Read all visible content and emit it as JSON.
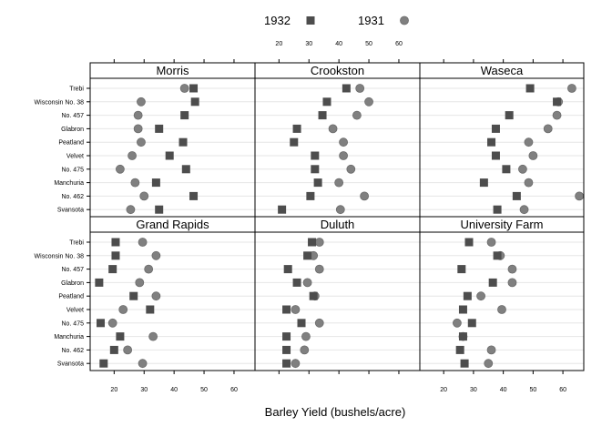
{
  "chart_data": {
    "type": "scatter",
    "xlabel": "Barley Yield (bushels/acre)",
    "xlim": [
      12,
      67
    ],
    "xticks": [
      20,
      30,
      40,
      50,
      60
    ],
    "varieties": [
      "Trebi",
      "Wisconsin No. 38",
      "No. 457",
      "Glabron",
      "Peatland",
      "Velvet",
      "No. 475",
      "Manchuria",
      "No. 462",
      "Svansota"
    ],
    "legend": {
      "position": "top",
      "entries": [
        {
          "name": "1932",
          "marker": "square",
          "color": "#4d4d4d"
        },
        {
          "name": "1931",
          "marker": "circle",
          "color": "#808080"
        }
      ]
    },
    "series_names": [
      "1932",
      "1931"
    ],
    "panels": [
      {
        "site": "Morris",
        "y1932": [
          46.5,
          47.0,
          43.5,
          35.0,
          43.0,
          38.5,
          44.0,
          34.0,
          46.5,
          35.0
        ],
        "y1931": [
          43.5,
          29.0,
          28.0,
          28.0,
          29.0,
          26.0,
          22.0,
          27.0,
          30.0,
          25.5
        ]
      },
      {
        "site": "Crookston",
        "y1932": [
          42.5,
          36.0,
          34.5,
          26.0,
          25.0,
          32.0,
          32.0,
          33.0,
          30.5,
          21.0
        ],
        "y1931": [
          47.0,
          50.0,
          46.0,
          38.0,
          41.5,
          41.5,
          44.0,
          40.0,
          48.5,
          40.5
        ]
      },
      {
        "site": "Waseca",
        "y1932": [
          49.0,
          58.0,
          42.0,
          37.5,
          36.0,
          37.5,
          41.0,
          33.5,
          44.5,
          38.0
        ],
        "y1931": [
          63.0,
          58.5,
          58.0,
          55.0,
          48.5,
          50.0,
          46.5,
          48.5,
          65.5,
          47.0
        ]
      },
      {
        "site": "Grand Rapids",
        "y1932": [
          20.5,
          20.5,
          19.5,
          15.0,
          26.5,
          32.0,
          15.5,
          22.0,
          20.0,
          16.5
        ],
        "y1931": [
          29.5,
          34.0,
          31.5,
          28.5,
          34.0,
          23.0,
          19.5,
          33.0,
          24.5,
          29.5
        ]
      },
      {
        "site": "Duluth",
        "y1932": [
          31.0,
          29.5,
          23.0,
          26.0,
          31.5,
          22.5,
          27.5,
          22.5,
          22.5,
          22.5
        ],
        "y1931": [
          33.5,
          31.5,
          33.5,
          29.5,
          32.0,
          25.5,
          33.5,
          29.0,
          28.5,
          25.5
        ]
      },
      {
        "site": "University Farm",
        "y1932": [
          28.5,
          38.0,
          26.0,
          36.5,
          28.0,
          26.5,
          29.5,
          26.5,
          25.5,
          27.0
        ],
        "y1931": [
          36.0,
          39.0,
          43.0,
          43.0,
          32.5,
          39.5,
          24.5,
          26.5,
          36.0,
          35.0
        ]
      }
    ]
  }
}
